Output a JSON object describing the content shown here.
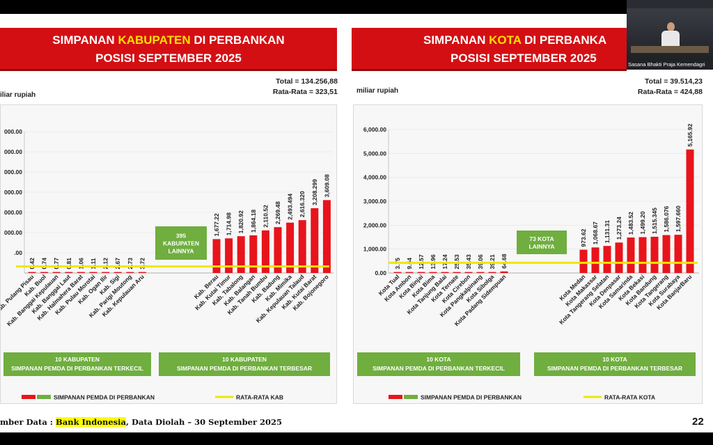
{
  "video": {
    "caption": "Sasana Bhakti Praja Kemendagri"
  },
  "footer": {
    "prefix": "mber Data : ",
    "source": "Bank Indonesia",
    "suffix": ", Data Diolah – 30 September 2025"
  },
  "page_number": "22",
  "colors": {
    "banner": "#d30f14",
    "highlight": "#ffe000",
    "bar": "#e8141b",
    "avg_line": "#f0e600",
    "green_box": "#6fae3f"
  },
  "chart_data": [
    {
      "type": "bar",
      "title": "SIMPANAN KABUPATEN DI PERBANKAN",
      "title_pre": "SIMPANAN ",
      "title_hl": "KABUPATEN",
      "title_post": " DI PERBANKAN",
      "subtitle": "POSISI SEPTEMBER 2025",
      "unit": "iliar rupiah",
      "total": "Total = 134.256,88",
      "average": "Rata-Rata = 323,51",
      "average_value": 323.51,
      "ylim": [
        0,
        7000
      ],
      "yticks": [
        1000,
        2000,
        3000,
        4000,
        5000,
        6000,
        7000
      ],
      "ytick_labels": [
        ".00",
        "000.00",
        "000.00",
        "000.00",
        "000.00",
        "000.00",
        "000.00"
      ],
      "categories": [
        "Kab. Pulang Pisau",
        "Kab. Buol",
        "Kab. Banggai Kepulauan",
        "Kab. Banggai Laut",
        "Kab. Halmahera Barat",
        "Kab. Pulau Morotai",
        "Kab. Ogan Ilir",
        "Kab. Sigi",
        "Kab. Parigi Moutong",
        "Kab. Kepulauan Aru",
        "Kab. Berau",
        "Kab. Kutai Timur",
        "Kab. Tabalong",
        "Kab. Balangan",
        "Kab. Tanah Bumbu",
        "Kab. Badung",
        "Kab. Mimika",
        "Kab. Kepulauan Talaud",
        "Kab. Kutai Barat",
        "Kab. Bojonegoro"
      ],
      "values": [
        0.42,
        0.74,
        0.77,
        0.81,
        1.06,
        1.11,
        2.12,
        2.67,
        2.73,
        3.72,
        1677.22,
        1714.98,
        1820.92,
        1864.18,
        2110.52,
        2269.48,
        2493.494,
        2616.32,
        3208.299,
        3609.08
      ],
      "value_labels": [
        "0.42",
        "0.74",
        "0.77",
        "0.81",
        "1.06",
        "1.11",
        "2.12",
        "2.67",
        "2.73",
        "3.72",
        "1,677.22",
        "1,714.98",
        "1,820.92",
        "1,864.18",
        "2,110.52",
        "2,269.48",
        "2,493.494",
        "2,616.320",
        "3,208.299",
        "3,609.08"
      ],
      "others_box": [
        "395",
        "KABUPATEN",
        "LAINNYA"
      ],
      "group_smallest": [
        "10 KABUPATEN",
        "SIMPANAN PEMDA DI PERBANKAN TERKECIL"
      ],
      "group_largest": [
        "10 KABUPATEN",
        "SIMPANAN PEMDA DI PERBANKAN TERBESAR"
      ],
      "legend_series": "SIMPANAN PEMDA DI PERBANKAN",
      "legend_avg": "RATA-RATA KAB"
    },
    {
      "type": "bar",
      "title": "SIMPANAN KOTA DI PERBANKAN",
      "title_pre": "SIMPANAN ",
      "title_hl": "KOTA",
      "title_post": " DI PERBANKA",
      "subtitle": "POSISI SEPTEMBER 2025",
      "unit": "miliar rupiah",
      "total": "Total = 39.514,23",
      "average": "Rata-Rata = 424,88",
      "average_value": 424.88,
      "ylim": [
        0,
        6000
      ],
      "yticks": [
        0,
        1000,
        2000,
        3000,
        4000,
        5000,
        6000
      ],
      "ytick_labels": [
        "0.00",
        "1,000.00",
        "2,000.00",
        "3,000.00",
        "4,000.00",
        "5,000.00",
        "6,000.00"
      ],
      "categories": [
        "Kota Tual",
        "Kota Ambon",
        "Kota Binjai",
        "Kota Bima",
        "Kota Tanjung Balai",
        "Kota Ternate",
        "Kota Cirebon",
        "Kota Pangkalpinang",
        "Kota Sibolga",
        "Kota Padang Sidempuan",
        "Kota Medan",
        "Kota Makassar",
        "Kota Tangerang Selatan",
        "Kota Denpasar",
        "Kota Samarinda",
        "Kota Bekasi",
        "Kota Bandung",
        "Kota Tangerang",
        "Kota Surabaya",
        "Kota BanjarBaru"
      ],
      "values": [
        3.75,
        9.64,
        12.57,
        13.96,
        17.24,
        25.53,
        35.43,
        39.06,
        39.21,
        64.68,
        973.62,
        1068.67,
        1131.31,
        1273.24,
        1483.52,
        1499.2,
        1515.345,
        1586.076,
        1597.66,
        5165.92
      ],
      "value_labels": [
        "3.75",
        "9.64",
        "12.57",
        "13.96",
        "17.24",
        "25.53",
        "35.43",
        "39.06",
        "39.21",
        "64.68",
        "973.62",
        "1,068.67",
        "1,131.31",
        "1,273.24",
        "1,483.52",
        "1,499.20",
        "1,515.345",
        "1,586.076",
        "1,597.660",
        "5,165.92"
      ],
      "others_box": [
        "73 KOTA",
        "LAINNYA"
      ],
      "group_smallest": [
        "10 KOTA",
        "SIMPANAN PEMDA DI PERBANKAN TERKECIL"
      ],
      "group_largest": [
        "10 KOTA",
        "SIMPANAN PEMDA DI PERBANKAN TERBESAR"
      ],
      "legend_series": "SIMPANAN PEMDA DI PERBANKAN",
      "legend_avg": "RATA-RATA KOTA"
    }
  ]
}
